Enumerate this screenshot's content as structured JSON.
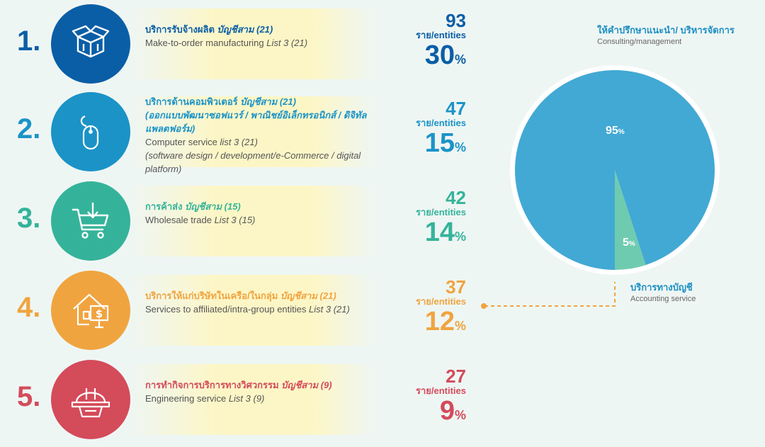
{
  "items": [
    {
      "num": "1.",
      "color": "#0a5ea6",
      "icon": "box-icon",
      "thai_main": "บริการรับจ้างผลิต",
      "thai_list": "บัญชีสาม (21)",
      "thai_sub": "",
      "en_main": "Make-to-order manufacturing",
      "en_list": "List 3 (21)",
      "en_sub": "",
      "count": "93",
      "unit": "ราย/entities",
      "pct": "30",
      "pct_sign": "%"
    },
    {
      "num": "2.",
      "color": "#1b93c7",
      "icon": "mouse-icon",
      "thai_main": "บริการด้านคอมพิวเตอร์",
      "thai_list": "บัญชีสาม (21)",
      "thai_sub": "(ออกแบบพัฒนาซอฟแวร์ / พาณิชย์อิเล็กทรอนิกส์ / ดิจิทัลแพลตฟอร์ม)",
      "en_main": "Computer service",
      "en_list": "list 3 (21)",
      "en_sub": "(software design / development/e-Commerce / digital platform)",
      "count": "47",
      "unit": "ราย/entities",
      "pct": "15",
      "pct_sign": "%"
    },
    {
      "num": "3.",
      "color": "#35b39a",
      "icon": "cart-icon",
      "thai_main": "การค้าส่ง",
      "thai_list": "บัญชีสาม (15)",
      "thai_sub": "",
      "en_main": "Wholesale trade",
      "en_list": "List 3 (15)",
      "en_sub": "",
      "count": "42",
      "unit": "ราย/entities",
      "pct": "14",
      "pct_sign": "%"
    },
    {
      "num": "4.",
      "color": "#f0a43f",
      "icon": "house-dollar-icon",
      "thai_main": "บริการให้แก่บริษัทในเครือ/ในกลุ่ม",
      "thai_list": "บัญชีสาม (21)",
      "thai_sub": "",
      "en_main": "Services to affiliated/intra-group entities",
      "en_list": "List 3 (21)",
      "en_sub": "",
      "count": "37",
      "unit": "ราย/entities",
      "pct": "12",
      "pct_sign": "%"
    },
    {
      "num": "5.",
      "color": "#d44b5a",
      "icon": "hardhat-icon",
      "thai_main": "การทำกิจการบริการทางวิศวกรรม",
      "thai_list": "บัญชีสาม (9)",
      "thai_sub": "",
      "en_main": "Engineering service",
      "en_list": "List 3 (9)",
      "en_sub": "",
      "count": "27",
      "unit": "ราย/entities",
      "pct": "9",
      "pct_sign": "%"
    }
  ],
  "chart_data": {
    "type": "pie",
    "slices": [
      {
        "label_th": "ให้คำปรึกษาแนะนำ/ บริหารจัดการ",
        "label_en": "Consulting/management",
        "value": 95,
        "value_label": "95",
        "color": "#42a9d4"
      },
      {
        "label_th": "บริการทางบัญชี",
        "label_en": "Accounting service",
        "value": 5,
        "value_label": "5",
        "color": "#6fcbb0"
      }
    ],
    "pct_sign": "%",
    "connector_color": "#f0a43f"
  }
}
